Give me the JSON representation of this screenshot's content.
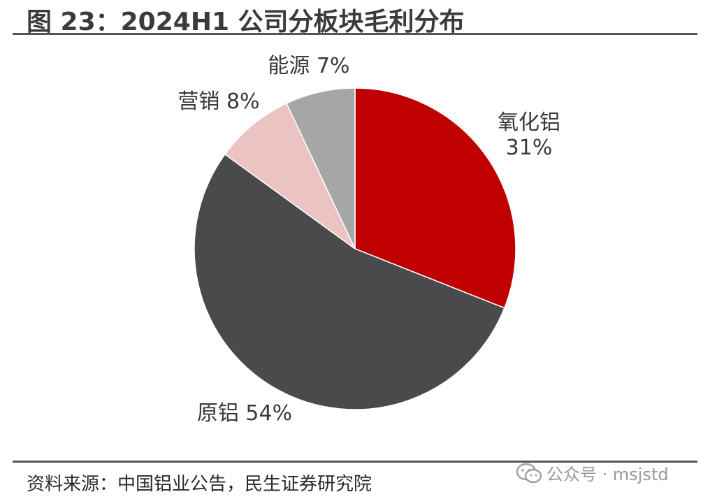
{
  "title": "图 23：2024H1 公司分板块毛利分布",
  "source": "资料来源：中国铝业公告，民生证券研究院",
  "watermark": "公众号 · msjstd",
  "chart_data": {
    "type": "pie",
    "title": "",
    "slices": [
      {
        "label": "氧化铝",
        "value": 31,
        "display": "31%",
        "color": "#C00000"
      },
      {
        "label": "原铝",
        "value": 54,
        "display": "54%",
        "color": "#4A4A4C"
      },
      {
        "label": "营销",
        "value": 8,
        "display": "8%",
        "color": "#EBC3C2"
      },
      {
        "label": "能源",
        "value": 7,
        "display": "7%",
        "color": "#A6A6A6"
      }
    ]
  }
}
